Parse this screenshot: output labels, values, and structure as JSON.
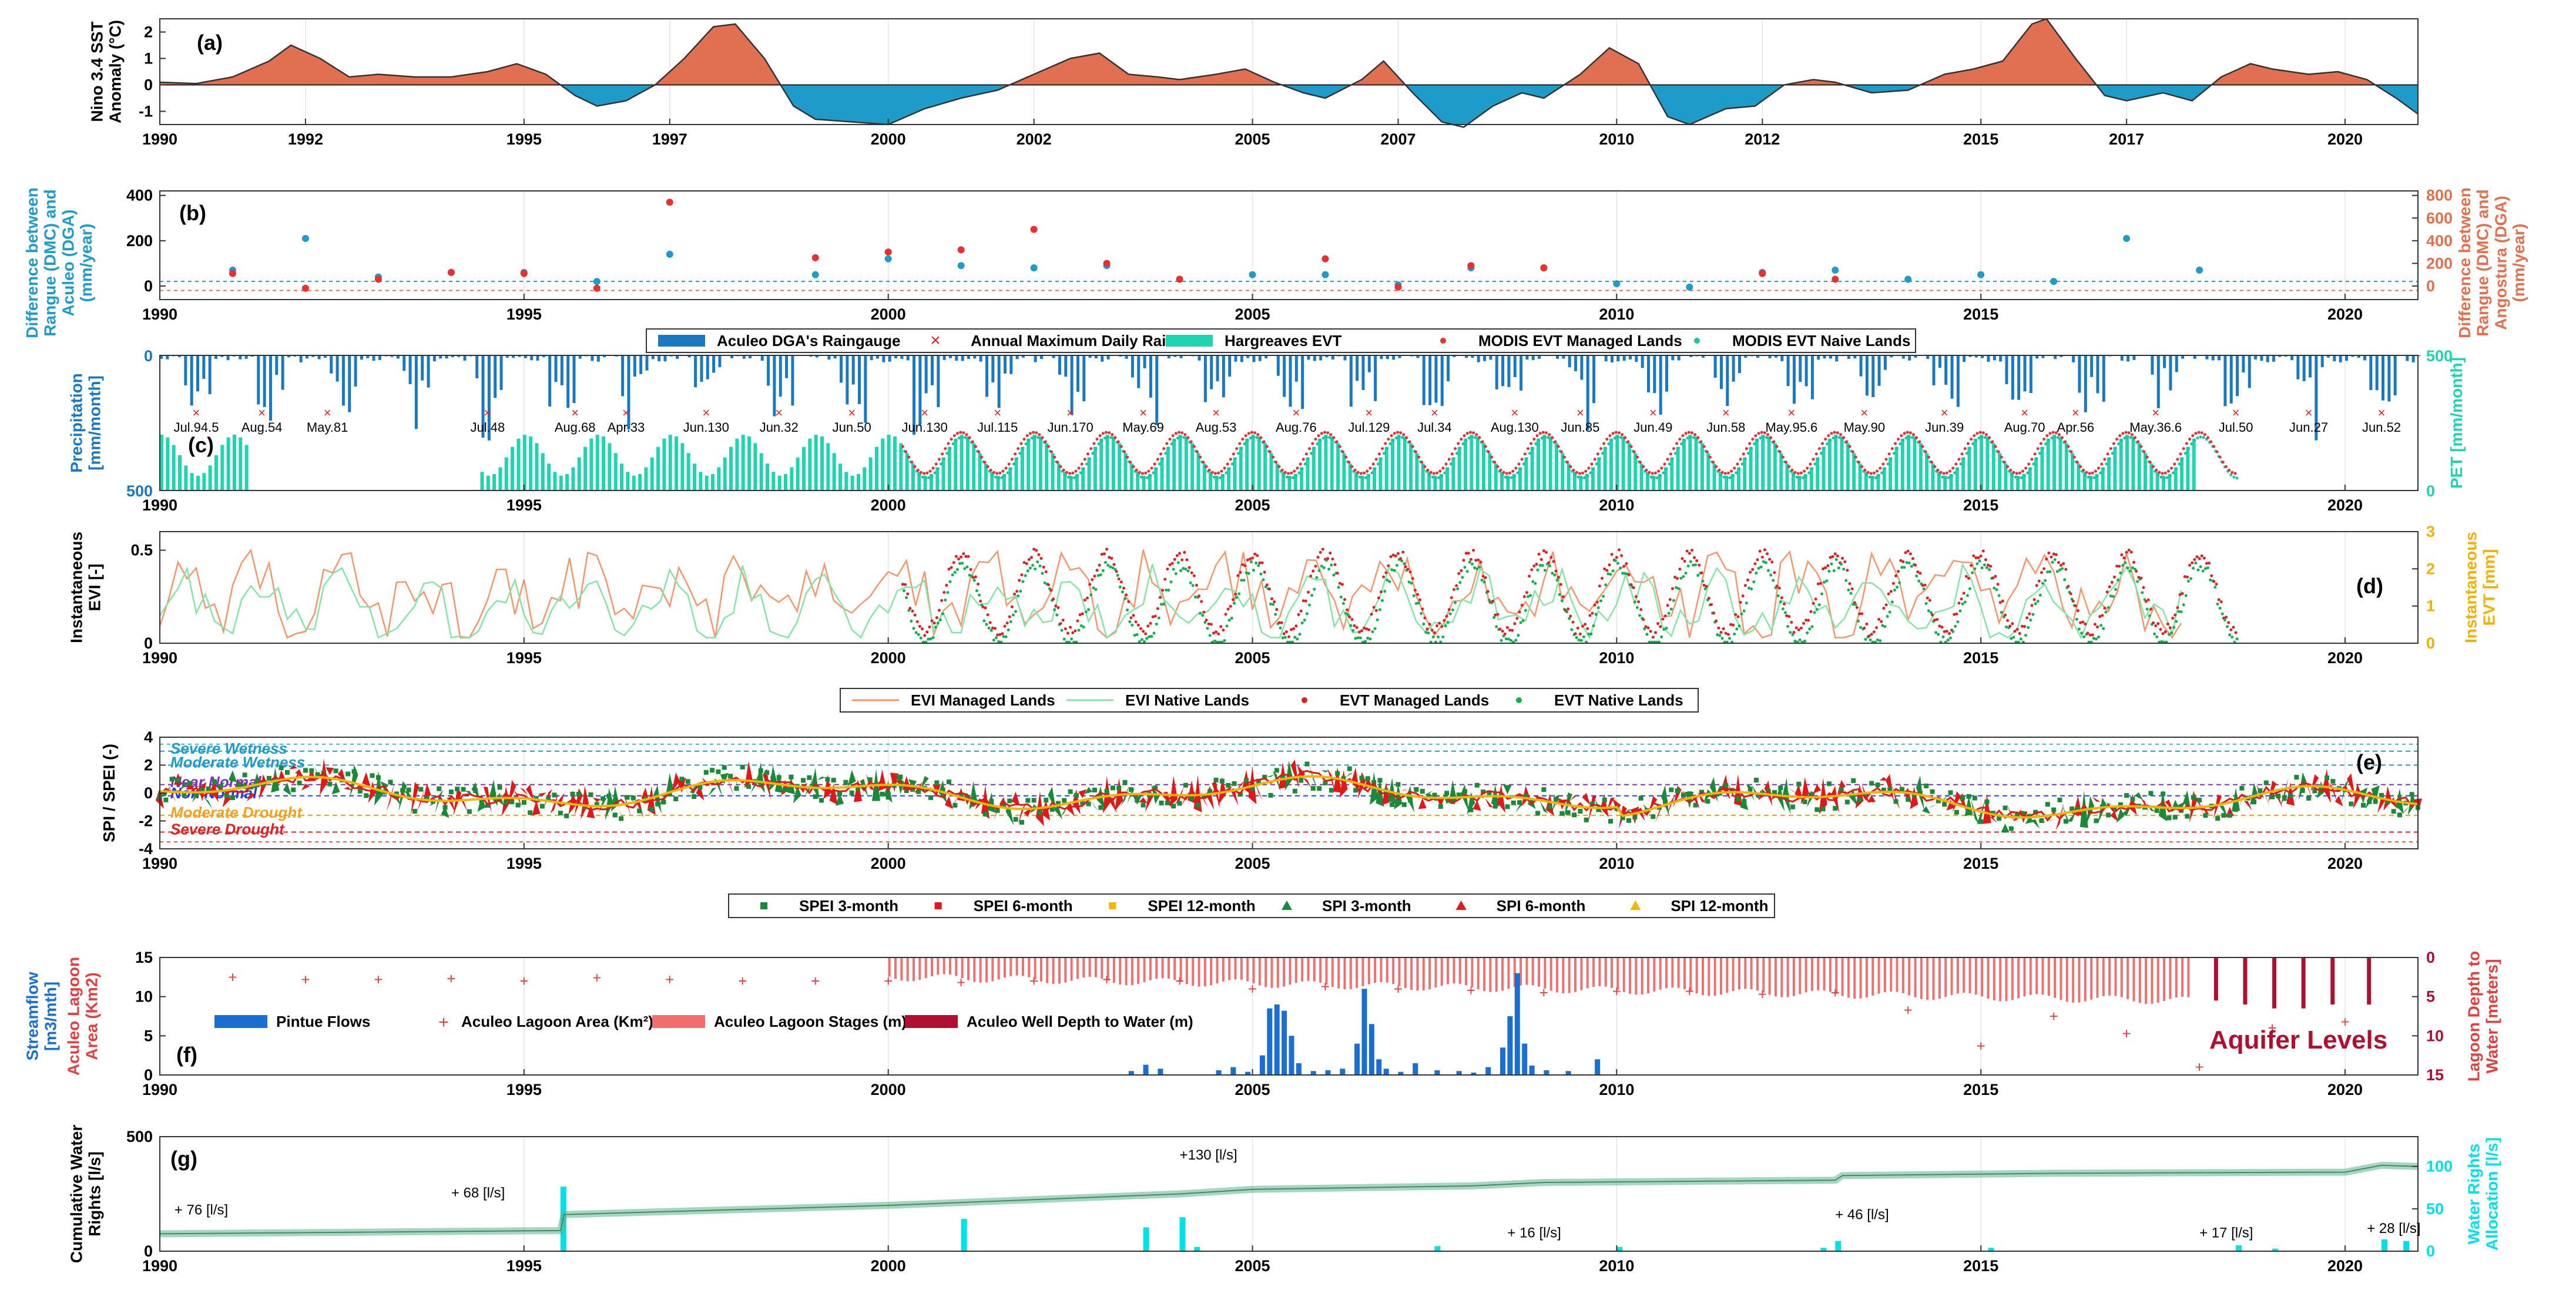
{
  "figure": {
    "year_ticks": [
      "1990",
      "1992",
      "1995",
      "1997",
      "2000",
      "2002",
      "2005",
      "2007",
      "2010",
      "2012",
      "2015",
      "2017",
      "2020"
    ],
    "year_ticks_5": [
      "1990",
      "1995",
      "2000",
      "2005",
      "2010",
      "2015",
      "2020"
    ],
    "colors": {
      "warm": "#e07050",
      "cool": "#1f9bc9",
      "rain": "#1a78c2",
      "pet": "#20d4b0",
      "modis_managed": "#e83030",
      "modis_native": "#20c0a0",
      "evi_managed": "#f4956a",
      "evi_native": "#86e3a6",
      "evt_managed": "#e02020",
      "evt_native": "#10b050",
      "spei3": "#1a8a3a",
      "spei6": "#e01818",
      "spei12": "#f4b400",
      "pintue": "#1a6fd0",
      "lagoon_area": "#e04040",
      "lagoon_stage": "#f07070",
      "well": "#b01030",
      "water_rights": "#60b090",
      "allocation": "#00e0e8"
    }
  },
  "chart_data": [
    {
      "panel": "(a)",
      "type": "area",
      "ylabel": [
        "Nino 3.4 SST",
        "Anomaly (°C)"
      ],
      "ylim": [
        -1.5,
        2.5
      ],
      "yticks": [
        "2",
        "1",
        "0",
        "-1"
      ],
      "x": [
        1990,
        1990.5,
        1991,
        1991.5,
        1991.8,
        1992.2,
        1992.6,
        1993,
        1993.5,
        1994,
        1994.5,
        1994.9,
        1995.3,
        1995.7,
        1996,
        1996.4,
        1996.8,
        1997.2,
        1997.6,
        1997.9,
        1998.3,
        1998.7,
        1999,
        1999.5,
        2000,
        2000.5,
        2001,
        2001.5,
        2002,
        2002.5,
        2002.9,
        2003.3,
        2003.7,
        2004,
        2004.5,
        2004.9,
        2005.3,
        2005.7,
        2006,
        2006.5,
        2006.8,
        2007.2,
        2007.6,
        2007.9,
        2008.3,
        2008.7,
        2009,
        2009.5,
        2009.9,
        2010.3,
        2010.7,
        2011,
        2011.5,
        2011.9,
        2012.3,
        2012.7,
        2013,
        2013.5,
        2014,
        2014.5,
        2014.9,
        2015.3,
        2015.7,
        2015.9,
        2016.3,
        2016.7,
        2017,
        2017.5,
        2017.9,
        2018.3,
        2018.7,
        2019,
        2019.5,
        2019.9,
        2020.3,
        2020.7,
        2021
      ],
      "values": [
        0.1,
        0.05,
        0.3,
        0.9,
        1.5,
        1.0,
        0.3,
        0.4,
        0.3,
        0.3,
        0.5,
        0.8,
        0.4,
        -0.4,
        -0.8,
        -0.6,
        0.0,
        1.0,
        2.2,
        2.3,
        1.0,
        -0.8,
        -1.3,
        -1.4,
        -1.5,
        -0.9,
        -0.5,
        -0.2,
        0.4,
        1.0,
        1.2,
        0.4,
        0.3,
        0.2,
        0.4,
        0.6,
        0.1,
        -0.3,
        -0.5,
        0.2,
        0.9,
        -0.3,
        -1.4,
        -1.6,
        -0.8,
        -0.3,
        -0.5,
        0.4,
        1.4,
        0.8,
        -1.2,
        -1.5,
        -0.9,
        -0.8,
        0.0,
        0.2,
        0.1,
        -0.3,
        -0.2,
        0.4,
        0.6,
        0.9,
        2.3,
        2.5,
        1.0,
        -0.4,
        -0.6,
        -0.3,
        -0.6,
        0.3,
        0.8,
        0.6,
        0.4,
        0.5,
        0.2,
        -0.5,
        -1.1
      ]
    },
    {
      "panel": "(b)",
      "type": "scatter",
      "ylabel": [
        "Difference between",
        "Rangue (DMC) and",
        "Aculeo (DGA)",
        "(mm/year)"
      ],
      "ylabel_right": [
        "Difference between",
        "Rangue (DMC) and",
        "Angostura (DGA)",
        "(mm/year)"
      ],
      "yticks": [
        "400",
        "200",
        "0"
      ],
      "yticks_right": [
        "800",
        "600",
        "400",
        "200",
        "0"
      ],
      "ylim": [
        -60,
        420
      ],
      "ylim_right": [
        -120,
        840
      ],
      "series": [
        {
          "marker": "dot-blue",
          "x": [
            1991,
            1992,
            1993,
            1994,
            1995,
            1996,
            1997,
            1999,
            2000,
            2001,
            2002,
            2003,
            2004,
            2005,
            2006,
            2007,
            2008,
            2009,
            2010,
            2011,
            2012,
            2013,
            2014,
            2015,
            2016,
            2017,
            2018
          ],
          "values": [
            70,
            210,
            40,
            60,
            60,
            20,
            140,
            50,
            120,
            90,
            80,
            90,
            30,
            50,
            50,
            5,
            80,
            80,
            10,
            -5,
            60,
            70,
            30,
            50,
            20,
            210,
            70
          ]
        },
        {
          "marker": "dot-red",
          "x": [
            1991,
            1992,
            1993,
            1994,
            1995,
            1996,
            1997,
            1999,
            2000,
            2001,
            2002,
            2003,
            2004,
            2005,
            2006,
            2007,
            2008,
            2009,
            2010,
            2011,
            2012,
            2013,
            2014,
            2015,
            2016,
            2017,
            2018
          ],
          "values": [
            110,
            -20,
            60,
            120,
            110,
            -20,
            740,
            250,
            300,
            320,
            500,
            200,
            60,
            null,
            240,
            -10,
            180,
            160,
            null,
            null,
            110,
            60,
            null,
            null,
            null,
            null,
            null
          ]
        }
      ]
    },
    {
      "panel": "(c)",
      "type": "bar",
      "legend": [
        "Aculeo DGA's Raingauge",
        "Annual Maximum Daily Rainfall",
        "Hargreaves EVT",
        "MODIS EVT Managed Lands",
        "MODIS EVT Naive Lands"
      ],
      "ylabel": [
        "Precipitation",
        "[mm/month]"
      ],
      "ylabel_right": "PET [mm/month]",
      "yticks": [
        "0",
        "500"
      ],
      "yticks_right": [
        "500",
        "0"
      ],
      "annual_max": [
        {
          "x": 1990.5,
          "label": "Jul.94.5"
        },
        {
          "x": 1991.4,
          "label": "Aug.54"
        },
        {
          "x": 1992.3,
          "label": "May.81"
        },
        {
          "x": 1994.5,
          "label": "Jul.48"
        },
        {
          "x": 1995.7,
          "label": "Aug.68"
        },
        {
          "x": 1996.4,
          "label": "Apr.33"
        },
        {
          "x": 1997.5,
          "label": "Jun.130"
        },
        {
          "x": 1998.5,
          "label": "Jun.32"
        },
        {
          "x": 1999.5,
          "label": "Jun.50"
        },
        {
          "x": 2000.5,
          "label": "Jun.130"
        },
        {
          "x": 2001.5,
          "label": "Jul.115"
        },
        {
          "x": 2002.5,
          "label": "Jun.170"
        },
        {
          "x": 2003.5,
          "label": "May.69"
        },
        {
          "x": 2004.5,
          "label": "Aug.53"
        },
        {
          "x": 2005.6,
          "label": "Aug.76"
        },
        {
          "x": 2006.6,
          "label": "Jul.129"
        },
        {
          "x": 2007.5,
          "label": "Jul.34"
        },
        {
          "x": 2008.6,
          "label": "Aug.130"
        },
        {
          "x": 2009.5,
          "label": "Jun.85"
        },
        {
          "x": 2010.5,
          "label": "Jun.49"
        },
        {
          "x": 2011.5,
          "label": "Jun.58"
        },
        {
          "x": 2012.4,
          "label": "May.95.6"
        },
        {
          "x": 2013.4,
          "label": "May.90"
        },
        {
          "x": 2014.5,
          "label": "Jun.39"
        },
        {
          "x": 2015.6,
          "label": "Aug.70"
        },
        {
          "x": 2016.3,
          "label": "Apr.56"
        },
        {
          "x": 2017.4,
          "label": "May.36.6"
        },
        {
          "x": 2018.5,
          "label": "Jul.50"
        },
        {
          "x": 2019.5,
          "label": "Jun.27"
        },
        {
          "x": 2020.5,
          "label": "Jun.52"
        }
      ],
      "pet_ranges": [
        [
          1990,
          1991.2
        ],
        [
          1994.4,
          2017.9
        ]
      ],
      "modis_range": [
        2000.2,
        2018.5
      ]
    },
    {
      "panel": "(d)",
      "type": "line",
      "legend": [
        "EVI Managed Lands",
        "EVI Native Lands",
        "EVT Managed Lands",
        "EVT Native Lands"
      ],
      "ylabel": [
        "Instantaneous",
        "EVI [-]"
      ],
      "ylabel_right": [
        "Instantaneous",
        "EVT [mm]"
      ],
      "yticks": [
        "0.5",
        "0"
      ],
      "yticks_right": [
        "3",
        "2",
        "1",
        "0"
      ],
      "ylim": [
        0,
        0.6
      ],
      "ylim_right": [
        0,
        3
      ]
    },
    {
      "panel": "(e)",
      "type": "scatter",
      "legend": [
        "SPEI 3-month",
        "SPEI 6-month",
        "SPEI 12-month",
        "SPI 3-month",
        "SPI 6-month",
        "SPI 12-month"
      ],
      "ylabel": "SPI / SPEI (-)",
      "yticks": [
        "4",
        "2",
        "0",
        "-2",
        "-4"
      ],
      "ylim": [
        -4,
        4
      ],
      "thresholds": [
        {
          "label": "Severe Wetness",
          "y": 3.0,
          "color": "#1f9bc9"
        },
        {
          "label": "Moderate Wetness",
          "y": 2.0,
          "color": "#1f9bc9"
        },
        {
          "label": "Near Normal",
          "y": 0.6,
          "color": "#7f30c0"
        },
        {
          "label": "Non Normal",
          "y": -0.2,
          "color": "#2040e0"
        },
        {
          "label": "Moderate Drought",
          "y": -1.6,
          "color": "#f4a020"
        },
        {
          "label": "Severe Drought",
          "y": -2.8,
          "color": "#e02020"
        }
      ]
    },
    {
      "panel": "(f)",
      "type": "bar",
      "legend": [
        "Pintue Flows",
        "Aculeo Lagoon Area (Km²)",
        "Aculeo Lagoon Stages (m)",
        "Aculeo Well Depth to Water (m)"
      ],
      "ylabel": [
        "Streamflow",
        "[m3/mth]"
      ],
      "ylabel2": [
        "Aculeo Lagoon",
        "Area (Km2)"
      ],
      "ylabel_right": [
        "Lagoon Depth to",
        "Water [meters]"
      ],
      "yticks": [
        "15",
        "10",
        "5",
        "0"
      ],
      "yticks_right": [
        "0",
        "5",
        "10",
        "15"
      ],
      "annotation": "Aquifer Levels",
      "pintue": {
        "x": [
          2003.3,
          2003.5,
          2003.7,
          2004.5,
          2004.7,
          2004.9,
          2005.1,
          2005.2,
          2005.3,
          2005.4,
          2005.5,
          2005.6,
          2005.8,
          2006.0,
          2006.2,
          2006.4,
          2006.5,
          2006.6,
          2006.7,
          2006.8,
          2007.0,
          2007.2,
          2007.5,
          2007.8,
          2008.0,
          2008.2,
          2008.4,
          2008.5,
          2008.6,
          2008.7,
          2008.8,
          2009.0,
          2009.3,
          2009.7
        ],
        "values": [
          0.5,
          1.3,
          0.8,
          0.6,
          1.0,
          0.4,
          2.5,
          8.5,
          9.0,
          8.2,
          5.0,
          1.5,
          0.5,
          0.6,
          0.8,
          4.0,
          11.0,
          6.5,
          2.0,
          0.8,
          0.4,
          1.5,
          0.6,
          0.5,
          0.3,
          1.0,
          3.5,
          7.5,
          13.0,
          4.0,
          1.2,
          0.6,
          0.5,
          2.0
        ]
      },
      "lagoon_area": {
        "x": [
          1991,
          1992,
          1993,
          1994,
          1995,
          1996,
          1997,
          1998,
          1999,
          2000,
          2001,
          2002,
          2003,
          2004,
          2005,
          2006,
          2007,
          2008,
          2009,
          2010,
          2011,
          2012,
          2013,
          2014,
          2015,
          2016,
          2017,
          2018,
          2019,
          2020
        ],
        "values": [
          12.5,
          12.2,
          12.2,
          12.3,
          12.0,
          12.4,
          12.2,
          12.0,
          12.0,
          12.0,
          11.8,
          12.0,
          12.2,
          12.0,
          11.0,
          11.3,
          11.0,
          10.8,
          10.5,
          10.7,
          10.7,
          10.3,
          10.5,
          8.3,
          3.7,
          7.5,
          5.3,
          1.0,
          6.0,
          6.8
        ]
      },
      "lagoon_stage_range": [
        2000,
        2017.9
      ],
      "well": {
        "x": [
          2018.2,
          2018.6,
          2019.0,
          2019.4,
          2019.8,
          2020.3
        ],
        "values": [
          5.5,
          6.0,
          6.5,
          6.5,
          6.0,
          6.0
        ]
      }
    },
    {
      "panel": "(g)",
      "type": "area",
      "ylabel": [
        "Cumulative Water",
        "Rights [l/s]"
      ],
      "ylabel_right": [
        "Water Rights",
        "Allocation [l/s]"
      ],
      "yticks": [
        "500",
        "0"
      ],
      "yticks_right": [
        "100",
        "50",
        "0"
      ],
      "ylim": [
        0,
        500
      ],
      "ylim_right": [
        0,
        135
      ],
      "cumulative": {
        "x": [
          1990,
          1995.5,
          1995.55,
          2000,
          2004,
          2005,
          2008,
          2009,
          2013,
          2013.1,
          2016,
          2020,
          2020.5,
          2021
        ],
        "values": [
          76,
          90,
          160,
          200,
          250,
          270,
          285,
          300,
          310,
          330,
          340,
          345,
          375,
          370
        ]
      },
      "annotations": [
        {
          "x": 1990.2,
          "y": 160,
          "label": "+ 76 [l/s]"
        },
        {
          "x": 1994,
          "y": 235,
          "label": "+ 68 [l/s]"
        },
        {
          "x": 2004,
          "y": 400,
          "label": "+130 [l/s]"
        },
        {
          "x": 2008.5,
          "y": 60,
          "label": "+ 16 [l/s]"
        },
        {
          "x": 2013,
          "y": 140,
          "label": "+ 46 [l/s]"
        },
        {
          "x": 2018,
          "y": 60,
          "label": "+ 17 [l/s]"
        },
        {
          "x": 2020.3,
          "y": 80,
          "label": "+ 28 [l/s]"
        }
      ],
      "allocation": {
        "x": [
          1995.5,
          2001,
          2003.5,
          2004,
          2004.2,
          2007.5,
          2010,
          2012.8,
          2013,
          2015.1,
          2018.5,
          2019,
          2020.5,
          2020.8
        ],
        "values": [
          76,
          38,
          28,
          40,
          5,
          6,
          5,
          4,
          12,
          4,
          7,
          3,
          14,
          12
        ]
      }
    }
  ]
}
